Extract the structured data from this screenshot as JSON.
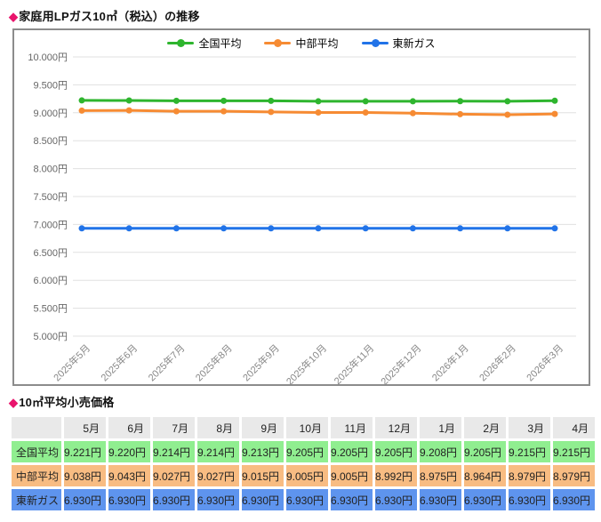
{
  "chart_section": {
    "bullet": "◆",
    "title": "家庭用LPガス10㎥（税込）の推移"
  },
  "chart_data": {
    "type": "line",
    "title": "家庭用LPガス10㎥（税込）の推移",
    "x": [
      "2025年5月",
      "2025年6月",
      "2025年7月",
      "2025年8月",
      "2025年9月",
      "2025年10月",
      "2025年11月",
      "2025年12月",
      "2026年1月",
      "2026年2月",
      "2026年3月"
    ],
    "series": [
      {
        "name": "全国平均",
        "color": "#2eb52e",
        "values": [
          9221,
          9220,
          9214,
          9214,
          9213,
          9205,
          9205,
          9205,
          9208,
          9205,
          9215
        ]
      },
      {
        "name": "中部平均",
        "color": "#f68b33",
        "values": [
          9038,
          9043,
          9027,
          9027,
          9015,
          9005,
          9005,
          8992,
          8975,
          8964,
          8979
        ]
      },
      {
        "name": "東新ガス",
        "color": "#2173e8",
        "values": [
          6930,
          6930,
          6930,
          6930,
          6930,
          6930,
          6930,
          6930,
          6930,
          6930,
          6930
        ]
      }
    ],
    "ylim": [
      5000,
      10000
    ],
    "ytick_step": 500,
    "ytick_suffix": "円",
    "ytick_labels": [
      "10.000円",
      "9.500円",
      "9.000円",
      "8.500円",
      "8.000円",
      "7.500円",
      "7.000円",
      "6.500円",
      "6.000円",
      "5.500円",
      "5.000円"
    ],
    "legend_position": "top-center",
    "grid": true
  },
  "table_section": {
    "bullet": "◆",
    "title": "10㎥平均小売価格"
  },
  "table": {
    "header_bg": "#e9e9e9",
    "columns": [
      "",
      "5月",
      "6月",
      "7月",
      "8月",
      "9月",
      "10月",
      "11月",
      "12月",
      "1月",
      "2月",
      "3月",
      "4月"
    ],
    "rows": [
      {
        "label": "全国平均",
        "bg": "#90ee90",
        "values": [
          "9.221円",
          "9.220円",
          "9.214円",
          "9.214円",
          "9.213円",
          "9.205円",
          "9.205円",
          "9.205円",
          "9.208円",
          "9.205円",
          "9.215円",
          "9.215円"
        ]
      },
      {
        "label": "中部平均",
        "bg": "#f8bc82",
        "values": [
          "9.038円",
          "9.043円",
          "9.027円",
          "9.027円",
          "9.015円",
          "9.005円",
          "9.005円",
          "8.992円",
          "8.975円",
          "8.964円",
          "8.979円",
          "8.979円"
        ]
      },
      {
        "label": "東新ガス",
        "bg": "#5e94ee",
        "values": [
          "6.930円",
          "6.930円",
          "6.930円",
          "6.930円",
          "6.930円",
          "6.930円",
          "6.930円",
          "6.930円",
          "6.930円",
          "6.930円",
          "6.930円",
          "6.930円"
        ]
      }
    ]
  },
  "colors": {
    "bullet": "#e9146c",
    "grid_line": "#e0e0e0",
    "chart_border": "#8c8c8c"
  }
}
